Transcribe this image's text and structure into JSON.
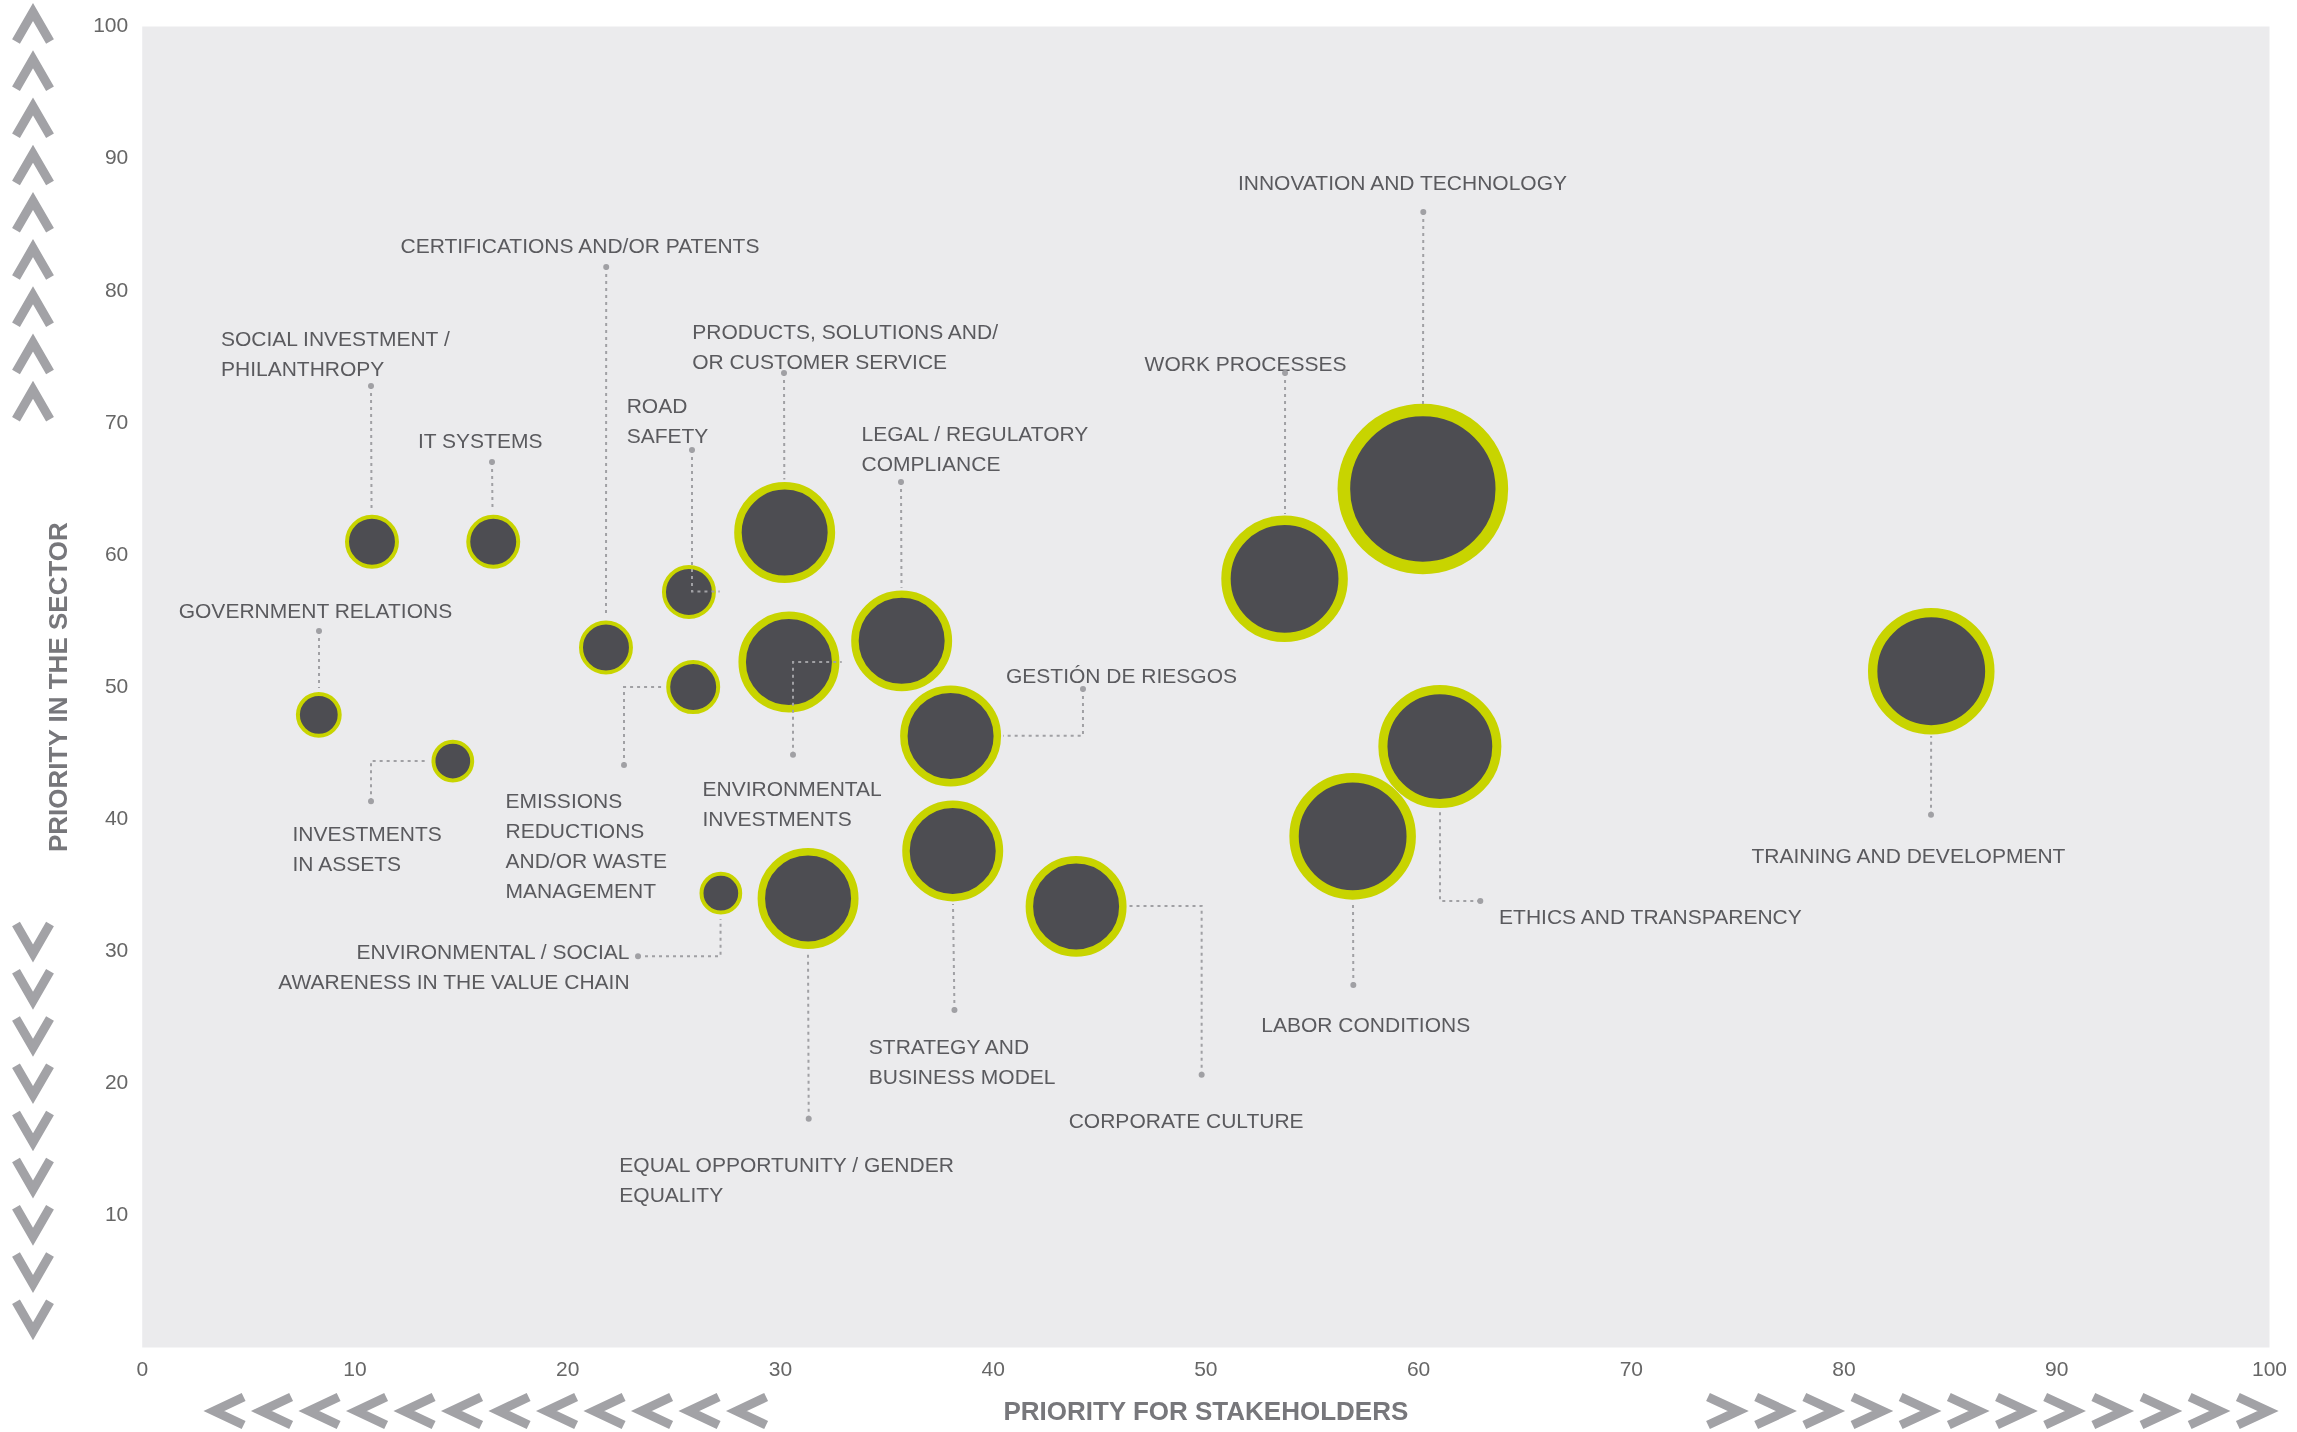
{
  "chart_data": {
    "type": "bubble",
    "xlabel": "PRIORITY FOR STAKEHOLDERS",
    "ylabel": "PRIORITY IN THE SECTOR",
    "x": [
      10.8,
      16.5,
      8.3,
      14.6,
      21.8,
      25.7,
      25.9,
      30.2,
      30.4,
      35.7,
      38,
      38.1,
      27.2,
      31.3,
      43.9,
      53.7,
      60.2,
      84.1,
      61,
      56.9
    ],
    "values": [
      61,
      61,
      47.9,
      44.4,
      53,
      57.2,
      50,
      61.7,
      51.9,
      53.5,
      46.3,
      37.6,
      34.4,
      34,
      33.4,
      58.2,
      65,
      51.2,
      45.5,
      38.7
    ],
    "sizes": [
      0.1,
      0.1,
      0.07,
      0.06,
      0.1,
      0.1,
      0.1,
      0.35,
      0.35,
      0.35,
      0.35,
      0.35,
      0.06,
      0.35,
      0.35,
      0.55,
      1,
      0.55,
      0.52,
      0.55
    ],
    "color": "#4d4d52",
    "xlim": [
      0,
      100
    ],
    "xticks": [
      0,
      10,
      20,
      30,
      40,
      50,
      60,
      70,
      80,
      90,
      100
    ],
    "ylim": [
      0,
      100
    ],
    "yticks": [
      10,
      20,
      30,
      40,
      50,
      60,
      70,
      80,
      90,
      100
    ],
    "grid": false,
    "legend": false,
    "annotations": [
      "SOCIAL INVESTMENT / PHILANTHROPY",
      "IT SYSTEMS",
      "GOVERNMENT RELATIONS",
      "INVESTMENTS IN ASSETS",
      "CERTIFICATIONS AND/OR PATENTS",
      "ROAD SAFETY",
      "EMISSIONS REDUCTIONS AND/OR WASTE MANAGEMENT",
      "PRODUCTS, SOLUTIONS AND/OR CUSTOMER SERVICE",
      "ENVIRONMENTAL INVESTMENTS",
      "LEGAL / REGULATORY COMPLIANCE",
      "GESTIÓN DE RIESGOS",
      "STRATEGY AND BUSINESS MODEL",
      "ENVIRONMENTAL / SOCIAL AWARENESS IN THE VALUE CHAIN",
      "EQUAL OPPORTUNITY / GENDER EQUALITY",
      "CORPORATE CULTURE",
      "WORK PROCESSES",
      "INNOVATION AND TECHNOLOGY",
      "TRAINING AND DEVELOPMENT",
      "ETHICS AND TRANSPARENCY",
      "LABOR CONDITIONS"
    ]
  }
}
